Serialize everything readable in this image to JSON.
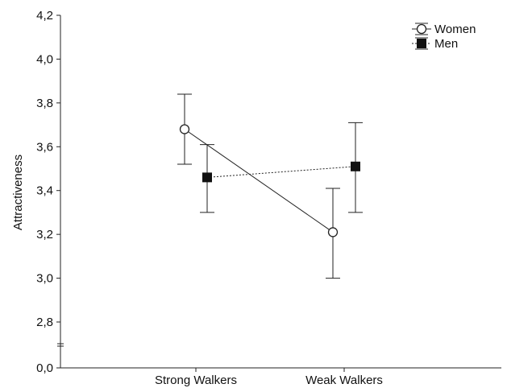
{
  "chart_data": {
    "type": "line",
    "title": "",
    "xlabel": "",
    "ylabel": "Attractiveness",
    "categories": [
      "Strong Walkers",
      "Weak Walkers"
    ],
    "yticks": [
      "0,0",
      "2,8",
      "3,0",
      "3,2",
      "3,4",
      "3,6",
      "3,8",
      "4,0",
      "4,2"
    ],
    "ytick_values": [
      0.0,
      2.8,
      3.0,
      3.2,
      3.4,
      3.6,
      3.8,
      4.0,
      4.2
    ],
    "axis_break": true,
    "ylim": [
      0.0,
      4.2
    ],
    "grid": false,
    "legend_position": "top-right",
    "series": [
      {
        "name": "Women",
        "marker": "open-circle",
        "line_style": "solid",
        "values": [
          3.68,
          3.21
        ],
        "error_low": [
          3.52,
          3.0
        ],
        "error_high": [
          3.84,
          3.41
        ],
        "color": "#222222"
      },
      {
        "name": "Men",
        "marker": "filled-square",
        "line_style": "dotted",
        "values": [
          3.46,
          3.51
        ],
        "error_low": [
          3.3,
          3.3
        ],
        "error_high": [
          3.61,
          3.71
        ],
        "color": "#111111"
      }
    ]
  }
}
